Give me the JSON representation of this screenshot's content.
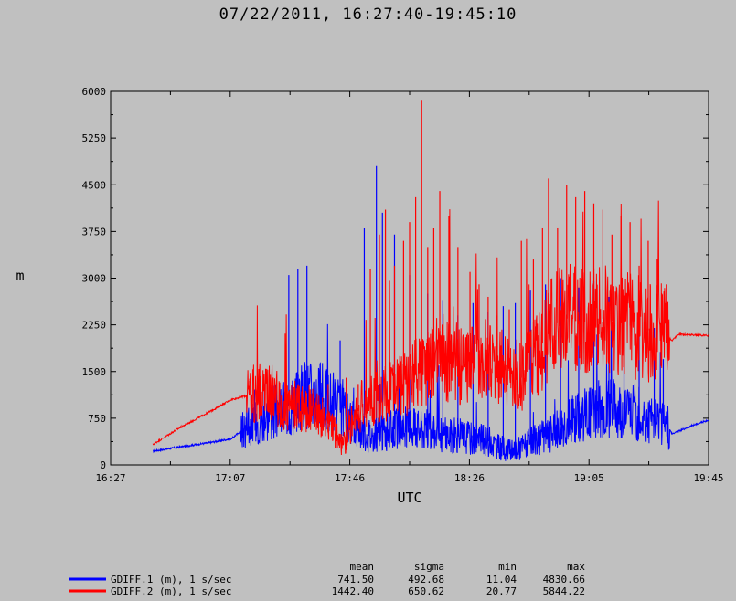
{
  "title": "07/22/2011, 16:27:40-19:45:10",
  "chart_data": {
    "type": "line",
    "xlabel": "UTC",
    "ylabel": "m",
    "ylim": [
      0,
      6000
    ],
    "y_ticks": [
      "0",
      "750",
      "1500",
      "2250",
      "3000",
      "3750",
      "4500",
      "5250",
      "6000"
    ],
    "x_ticks": [
      "16:27",
      "17:07",
      "17:46",
      "18:26",
      "19:05",
      "19:45"
    ],
    "xlim_minutes": [
      987,
      1185
    ],
    "legend_placement": "bottom-left",
    "stats_headers": [
      "mean",
      "sigma",
      "min",
      "max"
    ],
    "series": [
      {
        "name": "GDIFF.1 (m), 1 s/sec",
        "color": "#0000ff",
        "stats": [
          "741.50",
          "492.68",
          "11.04",
          "4830.66"
        ],
        "baseline": [
          [
            1001,
            220
          ],
          [
            1010,
            290
          ],
          [
            1020,
            360
          ],
          [
            1027,
            420
          ],
          [
            1032,
            620
          ],
          [
            1036,
            720
          ],
          [
            1040,
            820
          ],
          [
            1044,
            900
          ],
          [
            1048,
            1000
          ],
          [
            1052,
            1150
          ],
          [
            1056,
            1100
          ],
          [
            1060,
            1020
          ],
          [
            1063,
            880
          ],
          [
            1066,
            720
          ],
          [
            1070,
            560
          ],
          [
            1074,
            450
          ],
          [
            1080,
            560
          ],
          [
            1086,
            620
          ],
          [
            1090,
            560
          ],
          [
            1095,
            500
          ],
          [
            1100,
            480
          ],
          [
            1104,
            460
          ],
          [
            1108,
            420
          ],
          [
            1112,
            380
          ],
          [
            1116,
            280
          ],
          [
            1120,
            220
          ],
          [
            1124,
            320
          ],
          [
            1128,
            400
          ],
          [
            1132,
            480
          ],
          [
            1136,
            640
          ],
          [
            1140,
            740
          ],
          [
            1144,
            840
          ],
          [
            1148,
            900
          ],
          [
            1152,
            920
          ],
          [
            1156,
            900
          ],
          [
            1160,
            860
          ],
          [
            1164,
            760
          ],
          [
            1168,
            700
          ],
          [
            1171,
            640
          ],
          [
            1173,
            500
          ],
          [
            1176,
            560
          ],
          [
            1180,
            640
          ],
          [
            1185,
            720
          ]
        ],
        "spikes": [
          [
            1046,
            3050
          ],
          [
            1049,
            3150
          ],
          [
            1052,
            3200
          ],
          [
            1063,
            2000
          ],
          [
            1071,
            3800
          ],
          [
            1075,
            4800
          ],
          [
            1077,
            4050
          ],
          [
            1081,
            3700
          ],
          [
            1086,
            3050
          ],
          [
            1092,
            2750
          ],
          [
            1097,
            2650
          ],
          [
            1102,
            2400
          ],
          [
            1107,
            2600
          ],
          [
            1112,
            2450
          ],
          [
            1117,
            2550
          ],
          [
            1121,
            2600
          ],
          [
            1126,
            2800
          ],
          [
            1131,
            2900
          ],
          [
            1136,
            3000
          ],
          [
            1142,
            2850
          ],
          [
            1147,
            2950
          ],
          [
            1152,
            2700
          ],
          [
            1157,
            2600
          ],
          [
            1162,
            2500
          ],
          [
            1167,
            2200
          ],
          [
            1170,
            1700
          ]
        ]
      },
      {
        "name": "GDIFF.2 (m), 1 s/sec",
        "color": "#ff0000",
        "stats": [
          "1442.40",
          "650.62",
          "20.77",
          "5844.22"
        ],
        "baseline": [
          [
            1001,
            330
          ],
          [
            1010,
            600
          ],
          [
            1020,
            860
          ],
          [
            1027,
            1050
          ],
          [
            1031,
            1100
          ],
          [
            1036,
            1150
          ],
          [
            1040,
            1200
          ],
          [
            1044,
            850
          ],
          [
            1048,
            950
          ],
          [
            1053,
            900
          ],
          [
            1057,
            780
          ],
          [
            1061,
            550
          ],
          [
            1064,
            300
          ],
          [
            1067,
            700
          ],
          [
            1070,
            950
          ],
          [
            1074,
            1050
          ],
          [
            1078,
            1150
          ],
          [
            1083,
            1250
          ],
          [
            1088,
            1450
          ],
          [
            1094,
            1700
          ],
          [
            1099,
            1650
          ],
          [
            1104,
            1550
          ],
          [
            1108,
            1850
          ],
          [
            1112,
            1650
          ],
          [
            1116,
            1550
          ],
          [
            1120,
            1500
          ],
          [
            1123,
            1400
          ],
          [
            1126,
            1650
          ],
          [
            1130,
            1950
          ],
          [
            1134,
            2250
          ],
          [
            1138,
            2350
          ],
          [
            1142,
            2300
          ],
          [
            1146,
            2300
          ],
          [
            1150,
            2350
          ],
          [
            1154,
            2300
          ],
          [
            1158,
            2250
          ],
          [
            1162,
            2200
          ],
          [
            1166,
            2150
          ],
          [
            1170,
            2100
          ],
          [
            1173,
            2000
          ],
          [
            1175,
            2100
          ],
          [
            1185,
            2080
          ]
        ],
        "spikes": [
          [
            1033,
            1350
          ],
          [
            1039,
            1250
          ],
          [
            1043,
            1200
          ],
          [
            1048,
            1100
          ],
          [
            1059,
            1300
          ],
          [
            1065,
            1400
          ],
          [
            1069,
            1300
          ],
          [
            1073,
            3150
          ],
          [
            1076,
            3700
          ],
          [
            1078,
            4100
          ],
          [
            1081,
            3200
          ],
          [
            1084,
            3600
          ],
          [
            1086,
            3900
          ],
          [
            1088,
            4300
          ],
          [
            1090,
            5850
          ],
          [
            1092,
            3500
          ],
          [
            1094,
            3800
          ],
          [
            1096,
            4400
          ],
          [
            1099,
            4000
          ],
          [
            1102,
            3500
          ],
          [
            1106,
            3100
          ],
          [
            1109,
            2900
          ],
          [
            1112,
            2700
          ],
          [
            1115,
            2400
          ],
          [
            1119,
            2500
          ],
          [
            1123,
            3600
          ],
          [
            1127,
            3300
          ],
          [
            1130,
            3800
          ],
          [
            1132,
            4600
          ],
          [
            1135,
            3800
          ],
          [
            1138,
            4500
          ],
          [
            1141,
            4300
          ],
          [
            1144,
            4400
          ],
          [
            1147,
            4200
          ],
          [
            1150,
            4100
          ],
          [
            1153,
            3700
          ],
          [
            1156,
            4000
          ],
          [
            1159,
            3900
          ],
          [
            1162,
            3200
          ],
          [
            1165,
            3600
          ],
          [
            1168,
            3300
          ],
          [
            1171,
            2900
          ]
        ]
      }
    ]
  }
}
